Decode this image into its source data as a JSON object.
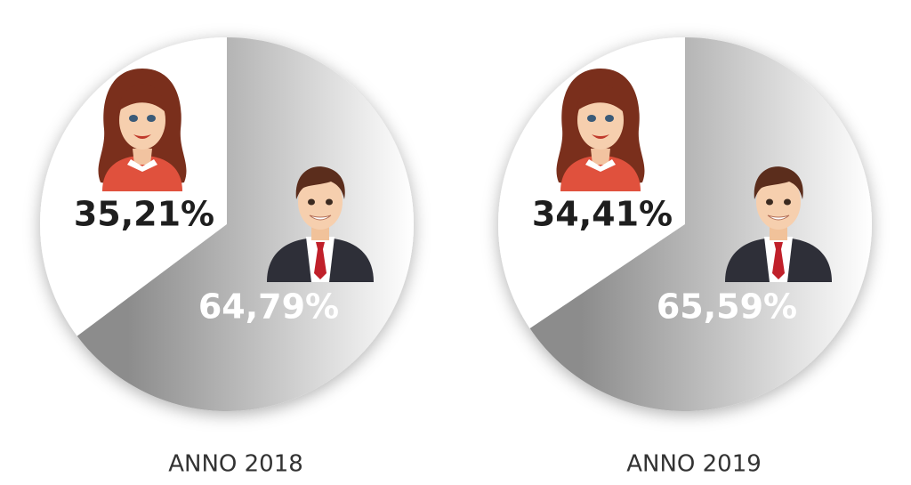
{
  "chart_data": [
    {
      "type": "pie",
      "title": "ANNO 2018",
      "values": [
        35.21,
        64.79
      ],
      "value_labels": [
        "35,21%",
        "64,79%"
      ],
      "colors": [
        "#ffffff",
        "#8c8c8c"
      ],
      "label_colors": [
        "#1e1e1e",
        "#ffffff"
      ]
    },
    {
      "type": "pie",
      "title": "ANNO 2019",
      "values": [
        34.41,
        65.59
      ],
      "value_labels": [
        "34,41%",
        "65,59%"
      ],
      "colors": [
        "#ffffff",
        "#8c8c8c"
      ],
      "label_colors": [
        "#1e1e1e",
        "#ffffff"
      ]
    }
  ]
}
